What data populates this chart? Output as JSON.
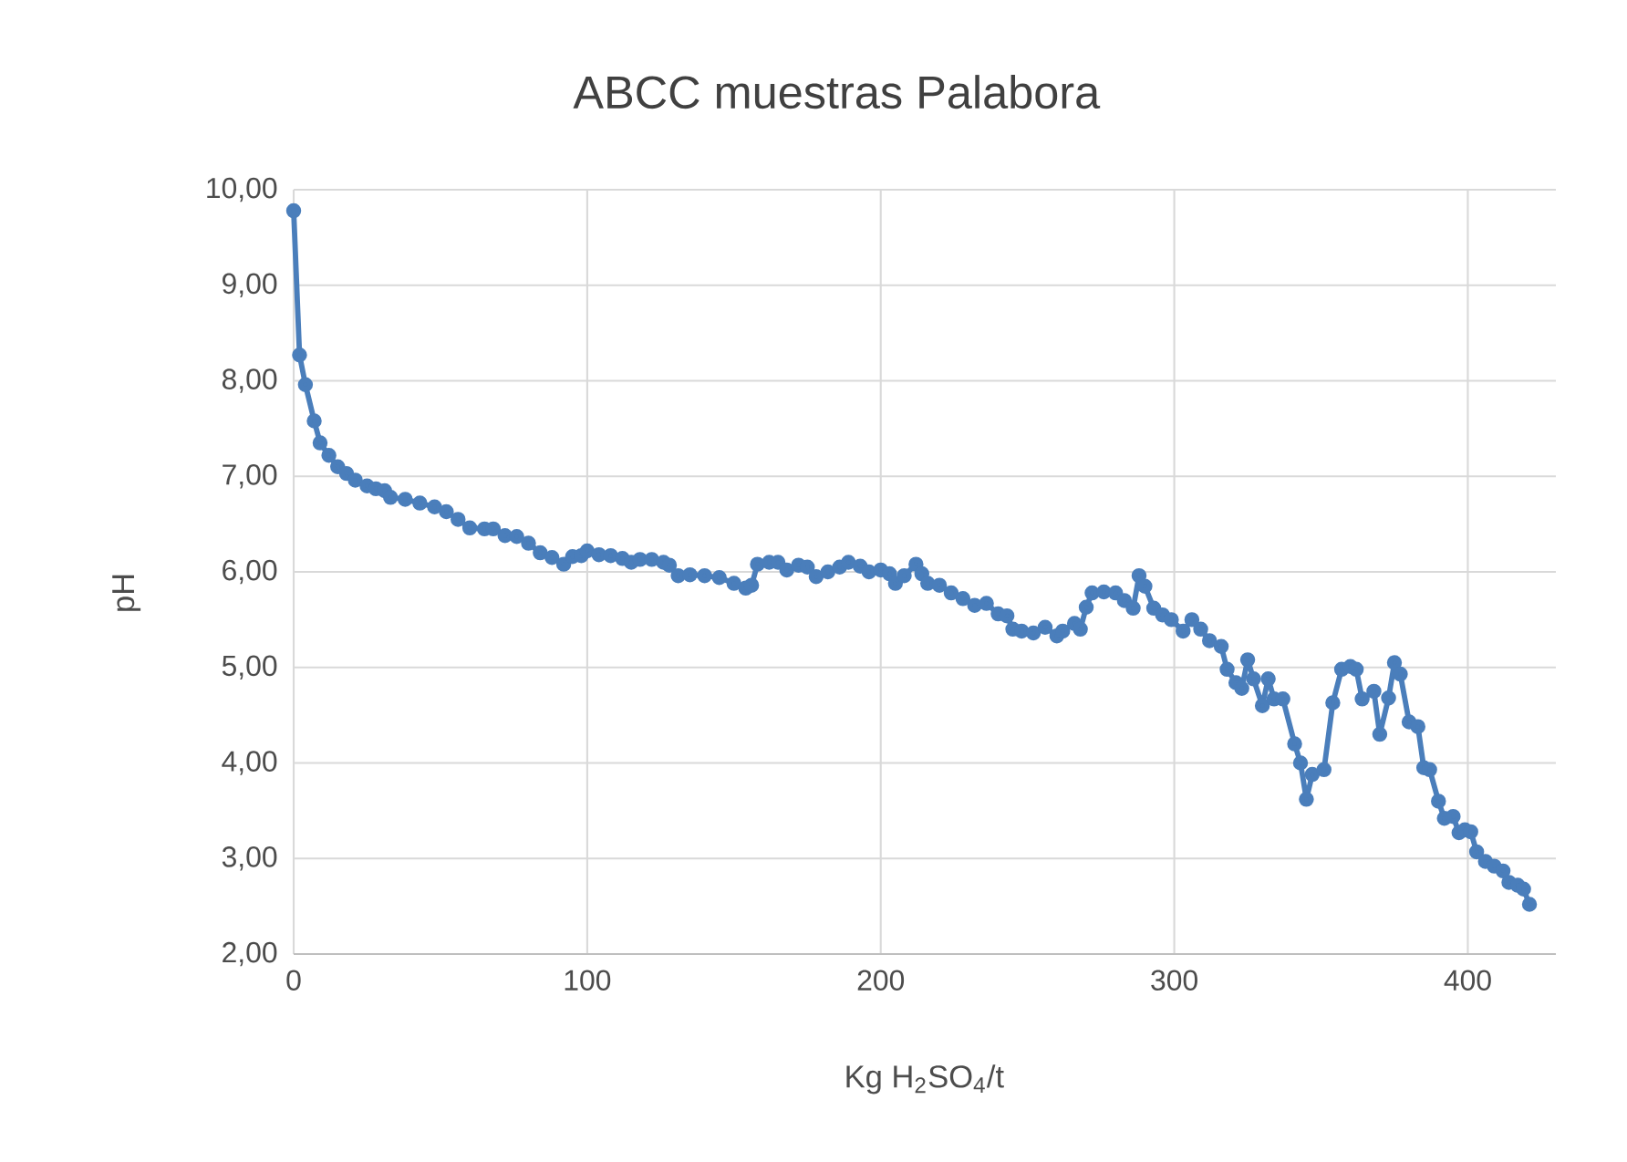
{
  "chart_data": {
    "type": "line",
    "title": "ABCC muestras Palabora",
    "xlabel": "Kg H$_{2}$SO$_{4}$/t",
    "ylabel": "pH",
    "series": [
      {
        "color": "#4a7ebb",
        "x": [
          0,
          2,
          4,
          7,
          9,
          12,
          15,
          18,
          21,
          25,
          28,
          31,
          33,
          38,
          43,
          48,
          52,
          56,
          60,
          65,
          68,
          72,
          76,
          80,
          84,
          88,
          92,
          95,
          98,
          100,
          104,
          108,
          112,
          115,
          118,
          122,
          126,
          128,
          131,
          135,
          140,
          145,
          150,
          154,
          156,
          158,
          162,
          165,
          168,
          172,
          175,
          178,
          182,
          186,
          189,
          193,
          196,
          200,
          203,
          205,
          208,
          212,
          214,
          216,
          220,
          224,
          228,
          232,
          236,
          240,
          243,
          245,
          248,
          252,
          256,
          260,
          262,
          266,
          268,
          270,
          272,
          276,
          280,
          283,
          286,
          288,
          290,
          293,
          296,
          299,
          303,
          306,
          309,
          312,
          316,
          318,
          321,
          323,
          325,
          327,
          330,
          332,
          334,
          337,
          341,
          343,
          345,
          347,
          351,
          354,
          357,
          360,
          362,
          364,
          368,
          370,
          373,
          375,
          377,
          380,
          383,
          385,
          387,
          390,
          392,
          395,
          397,
          399,
          401,
          403,
          406,
          409,
          412,
          414,
          417,
          419,
          421
        ],
        "values": [
          9.78,
          8.27,
          7.96,
          7.58,
          7.35,
          7.22,
          7.1,
          7.03,
          6.96,
          6.9,
          6.87,
          6.85,
          6.78,
          6.76,
          6.72,
          6.68,
          6.63,
          6.55,
          6.46,
          6.45,
          6.45,
          6.38,
          6.37,
          6.3,
          6.2,
          6.15,
          6.08,
          6.16,
          6.17,
          6.22,
          6.18,
          6.17,
          6.14,
          6.1,
          6.13,
          6.13,
          6.1,
          6.07,
          5.96,
          5.97,
          5.96,
          5.94,
          5.88,
          5.83,
          5.86,
          6.08,
          6.1,
          6.1,
          6.02,
          6.07,
          6.05,
          5.95,
          6.0,
          6.05,
          6.1,
          6.06,
          6.0,
          6.02,
          5.98,
          5.88,
          5.96,
          6.08,
          5.98,
          5.88,
          5.86,
          5.78,
          5.72,
          5.65,
          5.67,
          5.56,
          5.54,
          5.4,
          5.38,
          5.36,
          5.42,
          5.33,
          5.38,
          5.46,
          5.4,
          5.63,
          5.78,
          5.79,
          5.78,
          5.7,
          5.62,
          5.96,
          5.85,
          5.62,
          5.55,
          5.5,
          5.38,
          5.5,
          5.4,
          5.28,
          5.22,
          4.98,
          4.84,
          4.78,
          5.08,
          4.88,
          4.6,
          4.88,
          4.67,
          4.67,
          4.2,
          4.0,
          3.62,
          3.88,
          3.93,
          4.63,
          4.98,
          5.01,
          4.98,
          4.67,
          4.75,
          4.3,
          4.68,
          5.05,
          4.93,
          4.43,
          4.38,
          3.95,
          3.93,
          3.6,
          3.42,
          3.44,
          3.27,
          3.3,
          3.28,
          3.07,
          2.97,
          2.92,
          2.87,
          2.75,
          2.72,
          2.68,
          2.52
        ]
      }
    ],
    "xlim": [
      0,
      430
    ],
    "ylim": [
      2,
      10
    ],
    "xticks": [
      0,
      100,
      200,
      300,
      400
    ],
    "yticks": [
      {
        "value": 2,
        "label": "2,00"
      },
      {
        "value": 3,
        "label": "3,00"
      },
      {
        "value": 4,
        "label": "4,00"
      },
      {
        "value": 5,
        "label": "5,00"
      },
      {
        "value": 6,
        "label": "6,00"
      },
      {
        "value": 7,
        "label": "7,00"
      },
      {
        "value": 8,
        "label": "8,00"
      },
      {
        "value": 9,
        "label": "9,00"
      },
      {
        "value": 10,
        "label": "10,00"
      }
    ],
    "grid": true,
    "marker": "circle",
    "line_style": "solid"
  }
}
